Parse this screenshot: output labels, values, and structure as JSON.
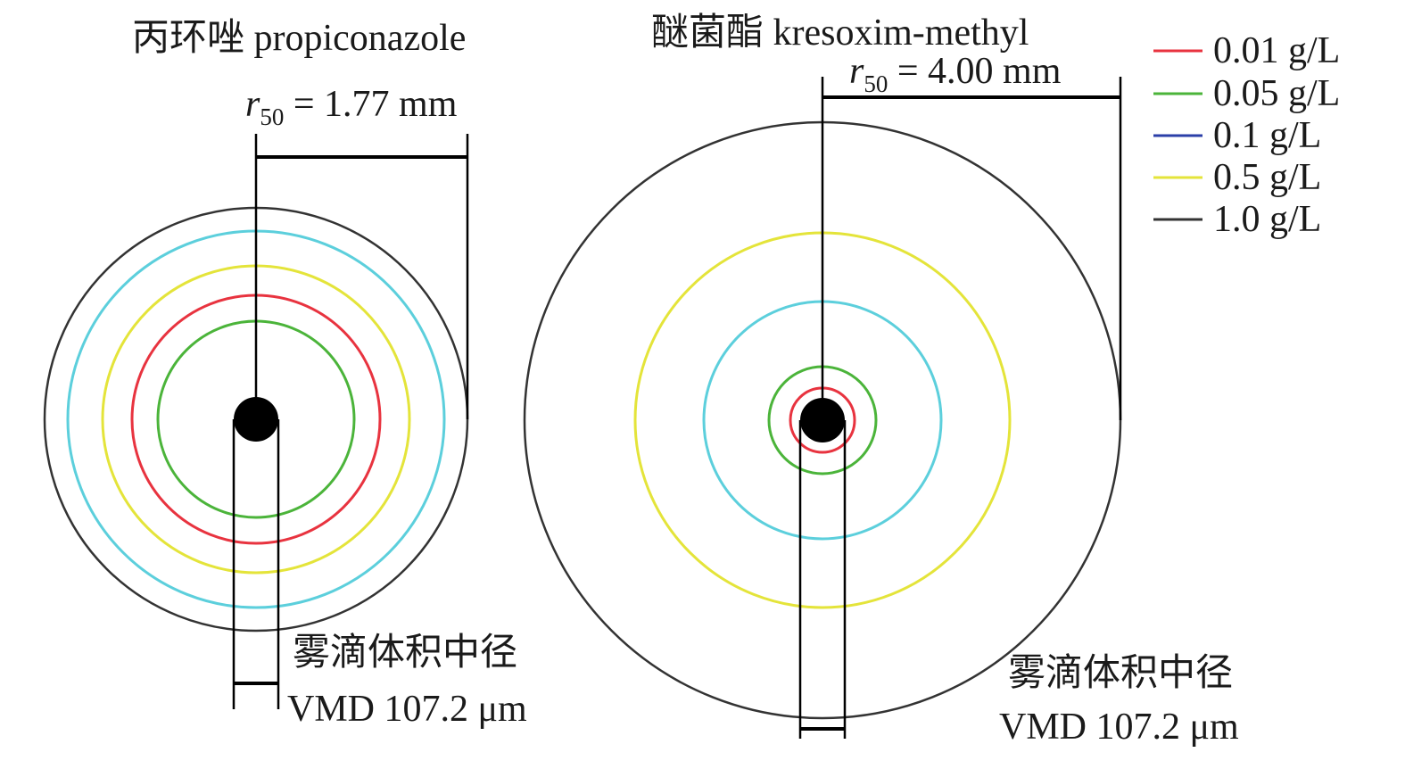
{
  "panels": [
    {
      "title": "丙环唑 propiconazole",
      "r50_label": {
        "symbol": "r",
        "subscript": "50",
        "value_text": " = 1.77 mm"
      },
      "r50_mm": 1.77,
      "vmd_label_zh": "雾滴体积中径",
      "vmd_label_en": "VMD 107.2 μm",
      "rings": [
        {
          "concentration": "0.01 g/L",
          "color": "#e8333f"
        },
        {
          "concentration": "0.05 g/L",
          "color": "#4bb43a"
        },
        {
          "concentration": "0.5 g/L",
          "color": "#e4e43a"
        },
        {
          "concentration": "cyan ring",
          "color": "#5ccfdc"
        },
        {
          "concentration": "1.0 g/L",
          "color": "#333333"
        }
      ]
    },
    {
      "title": "醚菌酯 kresoxim-methyl",
      "r50_label": {
        "symbol": "r",
        "subscript": "50",
        "value_text": " = 4.00 mm"
      },
      "r50_mm": 4.0,
      "vmd_label_zh": "雾滴体积中径",
      "vmd_label_en": "VMD 107.2 μm",
      "rings": [
        {
          "concentration": "0.01 g/L",
          "color": "#e8333f"
        },
        {
          "concentration": "0.05 g/L",
          "color": "#4bb43a"
        },
        {
          "concentration": "cyan ring",
          "color": "#5ccfdc"
        },
        {
          "concentration": "0.5 g/L",
          "color": "#e4e43a"
        },
        {
          "concentration": "1.0 g/L",
          "color": "#333333"
        }
      ]
    }
  ],
  "legend": [
    {
      "label": "0.01 g/L",
      "color": "#e8333f"
    },
    {
      "label": "0.05 g/L",
      "color": "#4bb43a"
    },
    {
      "label": "0.1 g/L",
      "color": "#2b3fa8"
    },
    {
      "label": "0.5 g/L",
      "color": "#e4e43a"
    },
    {
      "label": "1.0 g/L",
      "color": "#333333"
    }
  ]
}
